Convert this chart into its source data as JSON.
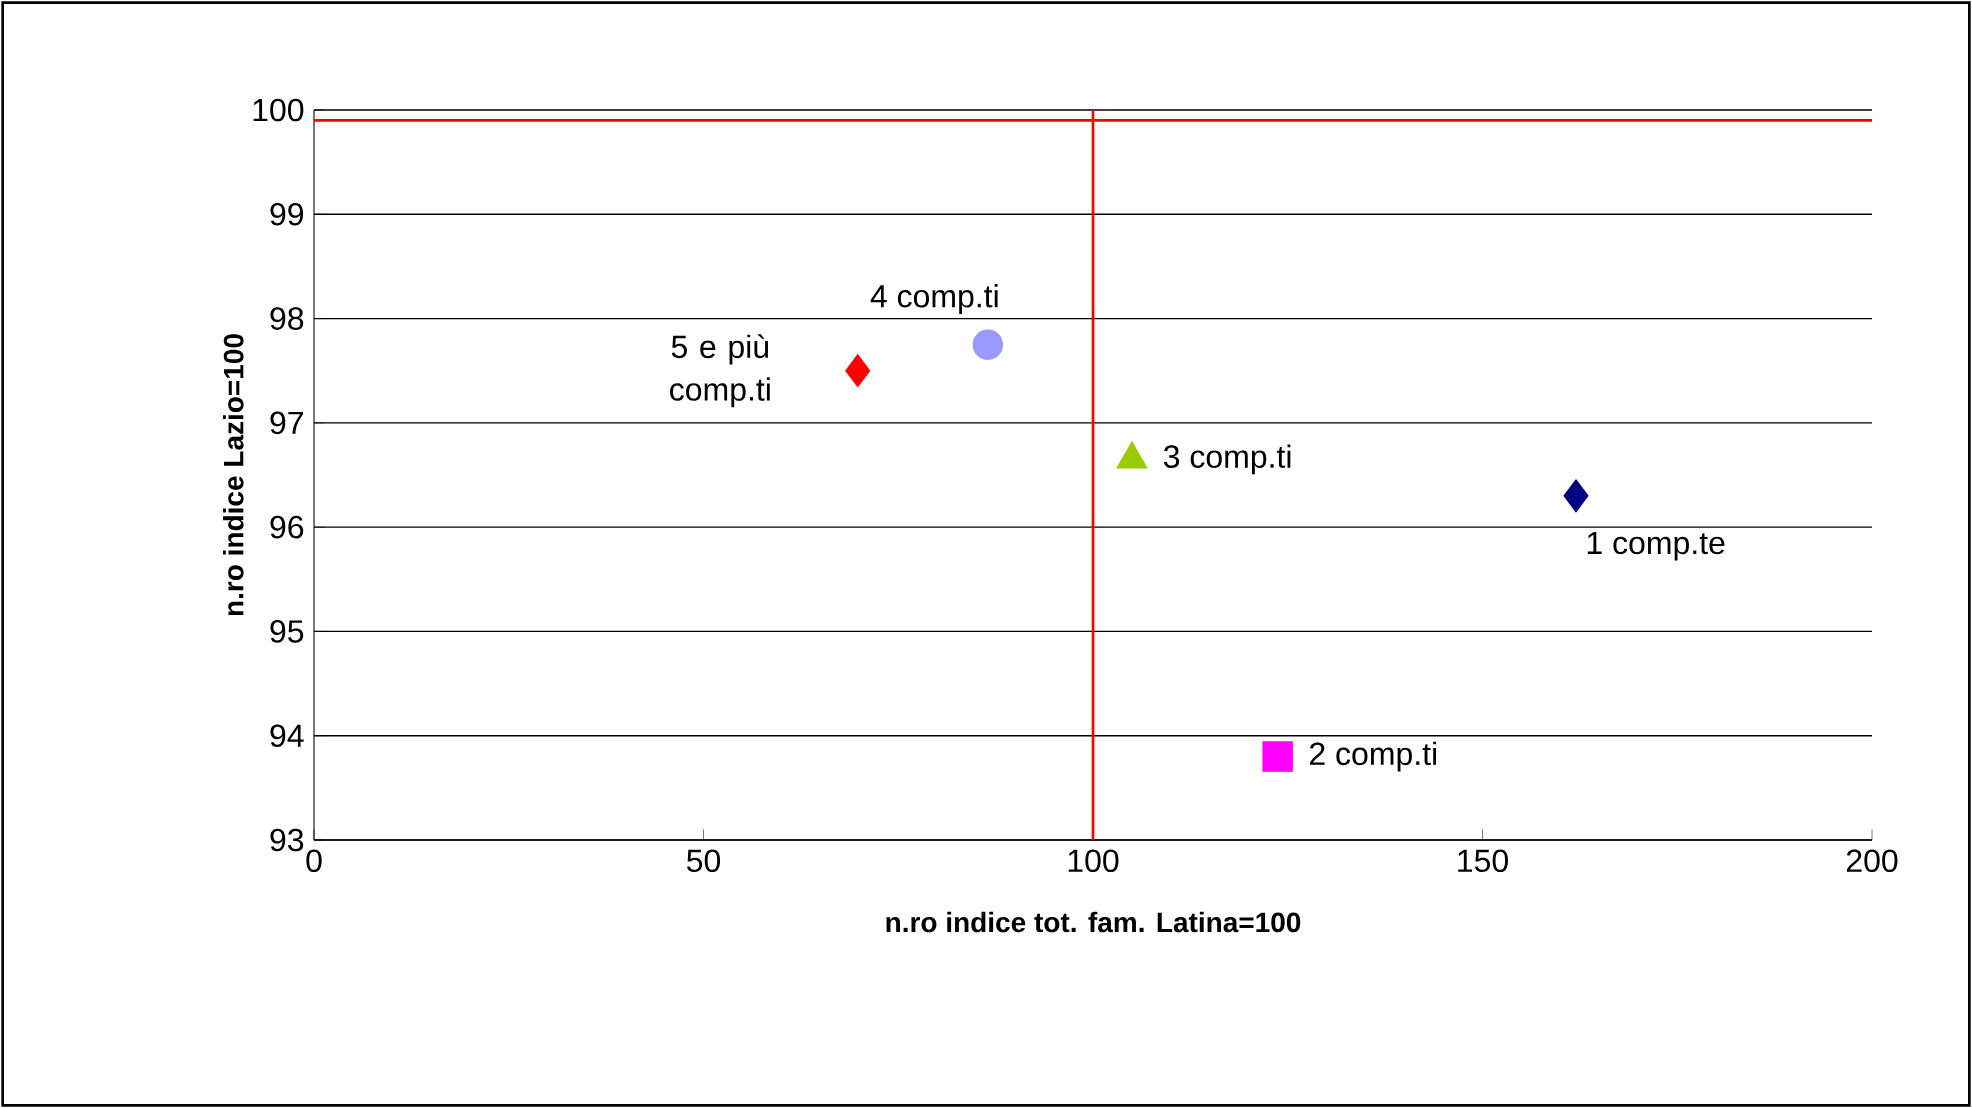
{
  "chart_data": {
    "type": "scatter",
    "xlabel": "n.ro indice tot. fam. Latina=100",
    "ylabel": "n.ro indice Lazio=100",
    "xlim": [
      0,
      200
    ],
    "xticks": [
      0,
      50,
      100,
      150,
      200
    ],
    "ylim": [
      93,
      100
    ],
    "yticks": [
      93,
      94,
      95,
      96,
      97,
      98,
      99,
      100
    ],
    "grid": "y",
    "series": [
      {
        "name": "1 comp.te",
        "color": "#000080",
        "marker": "diamond",
        "x": [
          162
        ],
        "values": [
          96.3
        ]
      },
      {
        "name": "2 comp.ti",
        "color": "#ff00ff",
        "marker": "square",
        "x": [
          123.7
        ],
        "values": [
          93.8
        ]
      },
      {
        "name": "3 comp.ti",
        "color": "#99cc00",
        "marker": "triangle",
        "x": [
          105
        ],
        "values": [
          96.65
        ]
      },
      {
        "name": "4 comp.ti",
        "color": "#9999ff",
        "marker": "circle",
        "x": [
          86.5
        ],
        "values": [
          97.75
        ]
      },
      {
        "name": "5 e più comp.ti",
        "color": "#ff0000",
        "marker": "diamond",
        "x": [
          69.8
        ],
        "values": [
          97.5
        ]
      }
    ],
    "ref_lines": [
      {
        "axis": "y",
        "value": 99.9,
        "color": "#ff0000"
      },
      {
        "axis": "x",
        "value": 100,
        "color": "#ff0000"
      }
    ]
  }
}
